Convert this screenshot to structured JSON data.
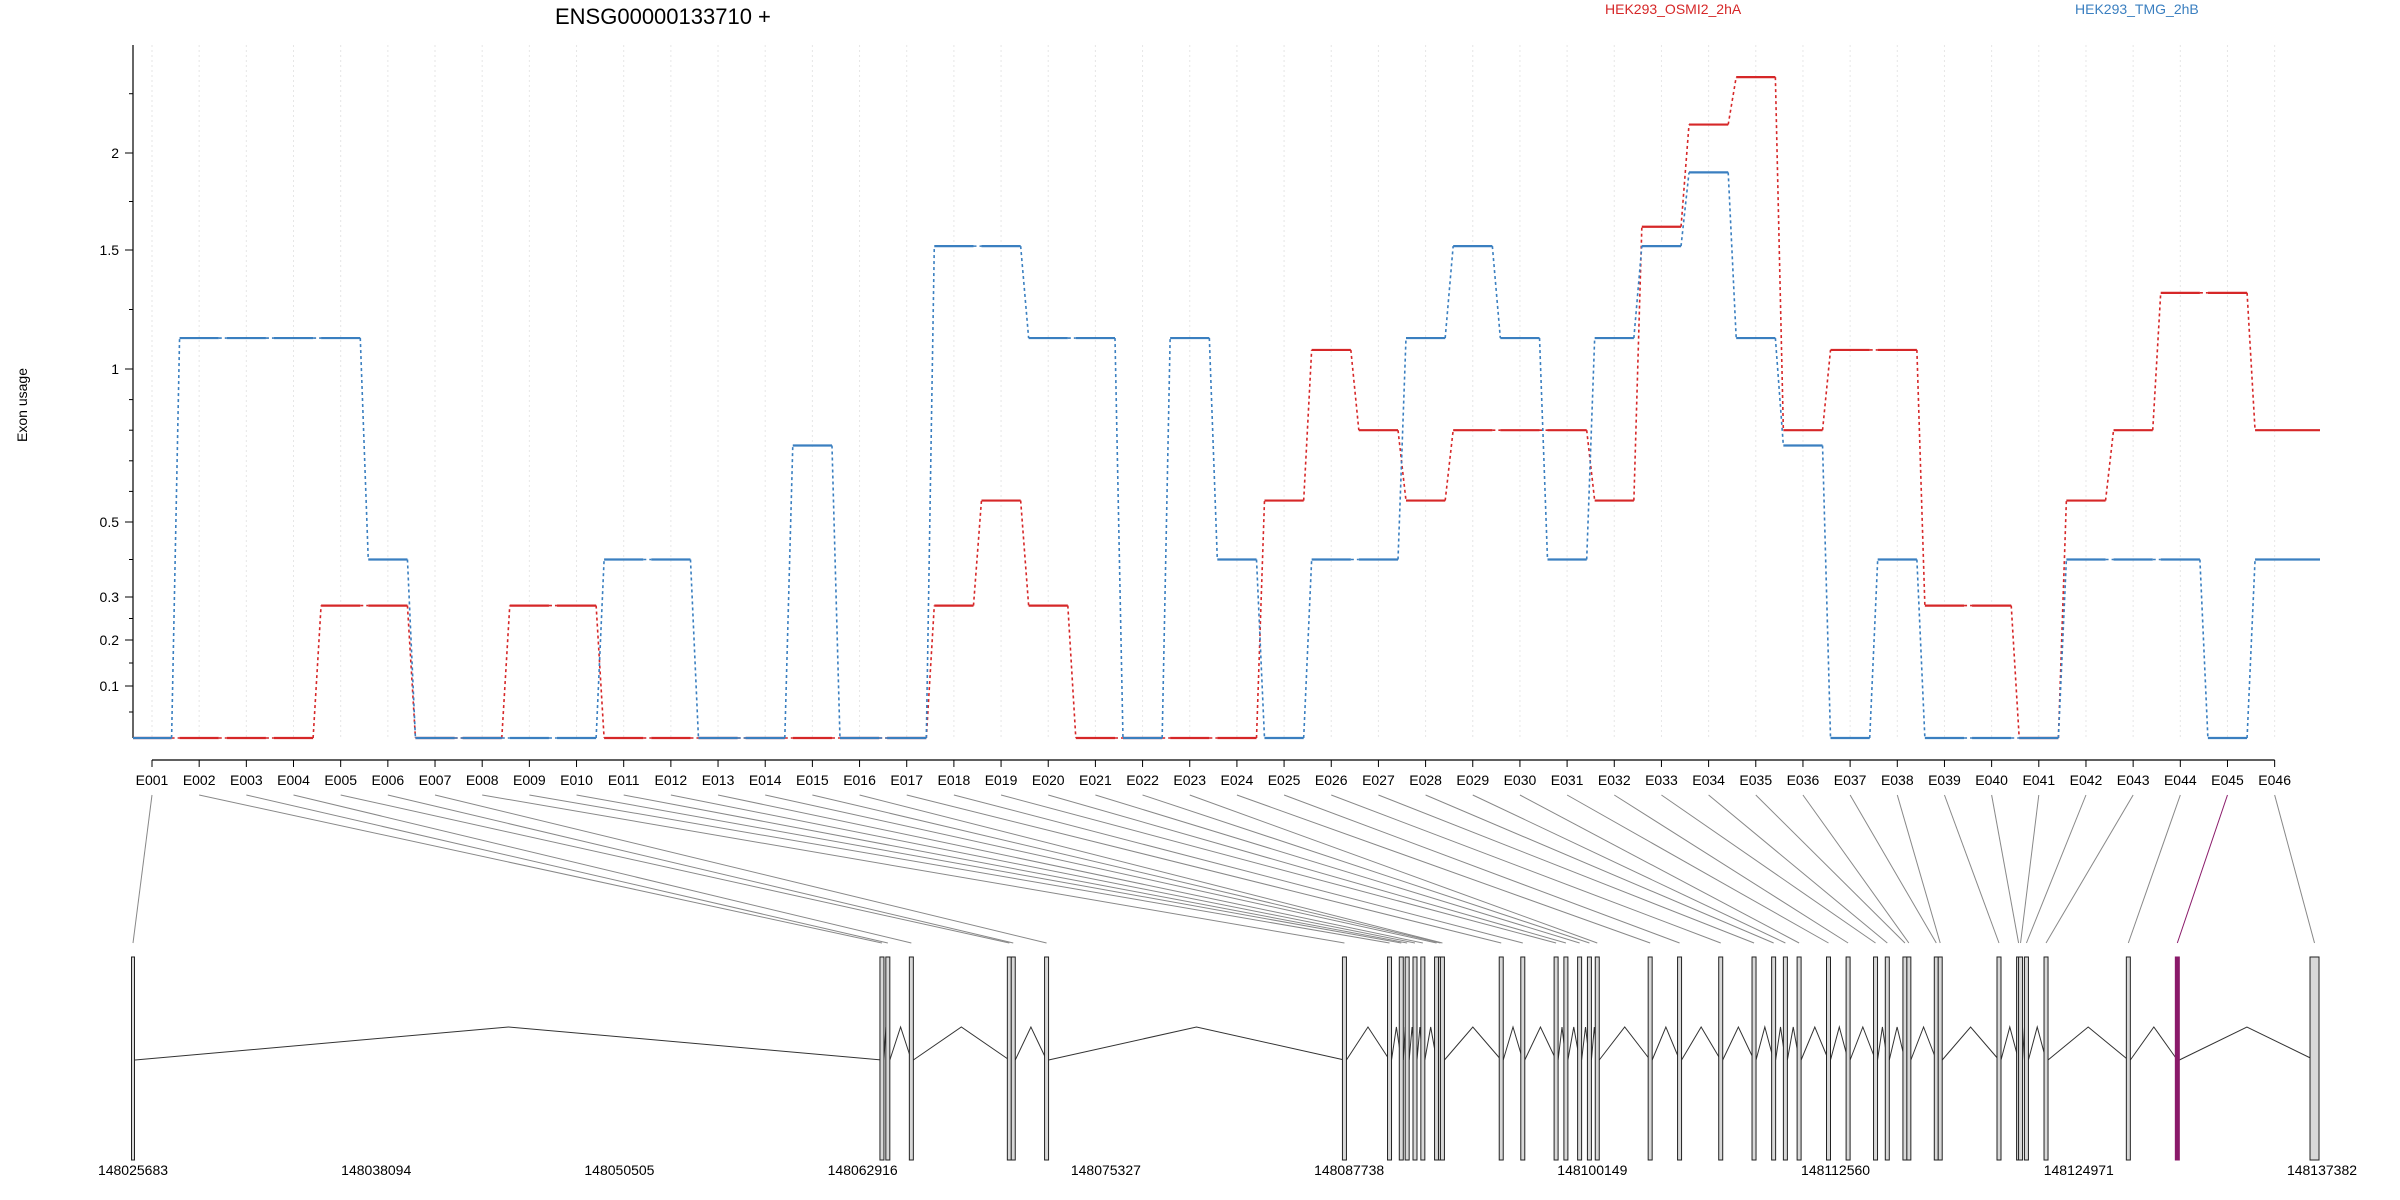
{
  "chart_data": {
    "type": "line",
    "title": "ENSG00000133710 +",
    "ylabel": "Exon usage",
    "xlabel": "",
    "ylim": [
      0,
      2.3
    ],
    "y_ticks": [
      0.1,
      0.2,
      0.3,
      0.5,
      1,
      1.5,
      2
    ],
    "y_tick_labels": [
      "0.1",
      "0.2",
      "0.3",
      "0.5",
      "1",
      "1.5",
      "2"
    ],
    "grid": "vertical light gridlines at each exon",
    "legend_placement": "top",
    "categories": [
      "E001",
      "E002",
      "E003",
      "E004",
      "E005",
      "E006",
      "E007",
      "E008",
      "E009",
      "E010",
      "E011",
      "E012",
      "E013",
      "E014",
      "E015",
      "E016",
      "E017",
      "E018",
      "E019",
      "E020",
      "E021",
      "E022",
      "E023",
      "E024",
      "E025",
      "E026",
      "E027",
      "E028",
      "E029",
      "E030",
      "E031",
      "E032",
      "E033",
      "E034",
      "E035",
      "E036",
      "E037",
      "E038",
      "E039",
      "E040",
      "E041",
      "E042",
      "E043",
      "E044",
      "E045",
      "E046"
    ],
    "series": [
      {
        "name": "HEK293_OSMI2_2hA",
        "color": "#d62728",
        "values": [
          0,
          0,
          0,
          0,
          0.28,
          0.28,
          0,
          0,
          0.28,
          0.28,
          0,
          0,
          0,
          0,
          0,
          0,
          0,
          0.28,
          0.57,
          0.28,
          0,
          0,
          0,
          0,
          0.57,
          1.08,
          0.8,
          0.57,
          0.8,
          0.8,
          0.8,
          0.57,
          1.62,
          2.12,
          2.32,
          0.8,
          1.08,
          1.08,
          0.28,
          0.28,
          0,
          0.57,
          0.8,
          1.32,
          1.32,
          0.8
        ]
      },
      {
        "name": "HEK293_TMG_2hB",
        "color": "#3a7fc0",
        "values": [
          0,
          1.13,
          1.13,
          1.13,
          1.13,
          0.4,
          0,
          0,
          0,
          0,
          0.4,
          0.4,
          0,
          0,
          0.75,
          0,
          0,
          1.52,
          1.52,
          1.13,
          1.13,
          0,
          1.13,
          0.4,
          0,
          0.4,
          0.4,
          1.13,
          1.52,
          1.13,
          0.4,
          1.13,
          1.52,
          1.9,
          1.13,
          0.75,
          0,
          0.4,
          0,
          0,
          0,
          0.4,
          0.4,
          0.4,
          0,
          0.4
        ]
      }
    ],
    "gene_model": {
      "start_label": "148025683",
      "end_label": "148137382",
      "axis_ticks": [
        "148025683",
        "148038094",
        "148050505",
        "148062916",
        "148075327",
        "148087738",
        "148100149",
        "148112560",
        "148124971",
        "148137382"
      ],
      "genomic_start": 148025683,
      "genomic_end": 148137382,
      "exon_positions": [
        148025683,
        148063900,
        148064200,
        148065400,
        148070400,
        148070600,
        148072300,
        148087500,
        148089800,
        148090400,
        148090700,
        148091100,
        148091500,
        148092200,
        148092400,
        148092500,
        148095500,
        148096600,
        148098300,
        148098800,
        148099500,
        148100000,
        148100400,
        148103100,
        148104600,
        148106700,
        148108400,
        148109400,
        148110000,
        148110700,
        148112200,
        148113200,
        148114600,
        148115200,
        148116100,
        148116300,
        148117700,
        148117900,
        148120900,
        148121900,
        148122000,
        148122300,
        148123300,
        148127500,
        148130000,
        148137000
      ],
      "highlight_exon": "E045",
      "highlight_color": "#8a1a6a"
    }
  }
}
